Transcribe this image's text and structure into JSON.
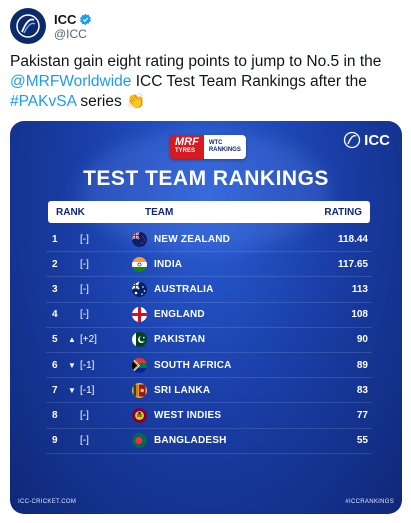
{
  "tweet": {
    "author_name": "ICC",
    "author_handle": "@ICC",
    "text_part1": "Pakistan gain eight rating points to jump to No.5 in the ",
    "mention": "@MRFWorldwide",
    "text_part2": " ICC Test Team Rankings after the ",
    "hashtag": "#PAKvSA",
    "text_part3": " series ",
    "emoji": "👏"
  },
  "card": {
    "sponsor_brand": "MRF",
    "sponsor_sub": "TYRES",
    "sponsor_wtc_line1": "WTC",
    "sponsor_wtc_line2": "RANKINGS",
    "logo_text": "ICC",
    "title": "TEST TEAM RANKINGS",
    "headers": {
      "rank": "RANK",
      "team": "TEAM",
      "rating": "RATING"
    },
    "rows": [
      {
        "pos": "1",
        "arrow": "",
        "move": "[-]",
        "team": "NEW ZEALAND",
        "rating": "118.44",
        "flag": "new-zealand"
      },
      {
        "pos": "2",
        "arrow": "",
        "move": "[-]",
        "team": "INDIA",
        "rating": "117.65",
        "flag": "india"
      },
      {
        "pos": "3",
        "arrow": "",
        "move": "[-]",
        "team": "AUSTRALIA",
        "rating": "113",
        "flag": "australia"
      },
      {
        "pos": "4",
        "arrow": "",
        "move": "[-]",
        "team": "ENGLAND",
        "rating": "108",
        "flag": "england"
      },
      {
        "pos": "5",
        "arrow": "▲",
        "move": "[+2]",
        "team": "PAKISTAN",
        "rating": "90",
        "flag": "pakistan"
      },
      {
        "pos": "6",
        "arrow": "▼",
        "move": "[-1]",
        "team": "SOUTH AFRICA",
        "rating": "89",
        "flag": "south-africa"
      },
      {
        "pos": "7",
        "arrow": "▼",
        "move": "[-1]",
        "team": "SRI LANKA",
        "rating": "83",
        "flag": "sri-lanka"
      },
      {
        "pos": "8",
        "arrow": "",
        "move": "[-]",
        "team": "WEST INDIES",
        "rating": "77",
        "flag": "west-indies"
      },
      {
        "pos": "9",
        "arrow": "",
        "move": "[-]",
        "team": "BANGLADESH",
        "rating": "55",
        "flag": "bangladesh"
      }
    ],
    "footer_left": "ICC-CRICKET.COM",
    "footer_right": "#ICCRANKINGS"
  },
  "colors": {
    "card_blue": "#1a3fa8",
    "link_blue": "#1d9bf0",
    "header_text": "#0f2777"
  }
}
